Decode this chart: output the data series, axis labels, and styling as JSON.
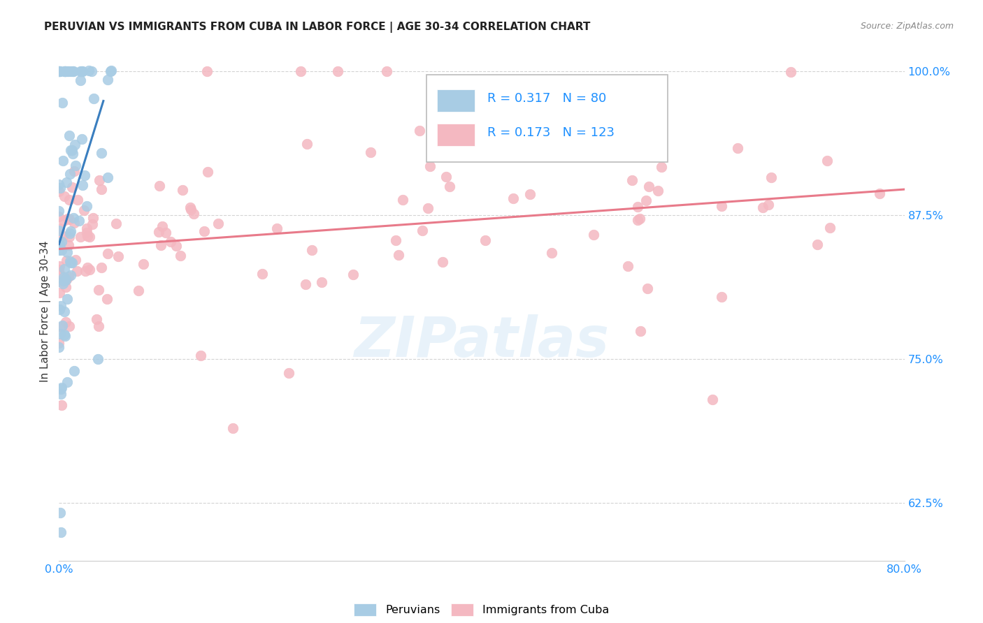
{
  "title": "PERUVIAN VS IMMIGRANTS FROM CUBA IN LABOR FORCE | AGE 30-34 CORRELATION CHART",
  "source": "Source: ZipAtlas.com",
  "ylabel": "In Labor Force | Age 30-34",
  "xmin": 0.0,
  "xmax": 0.8,
  "ymin": 0.575,
  "ymax": 1.008,
  "yticks": [
    0.625,
    0.75,
    0.875,
    1.0
  ],
  "ytick_labels": [
    "62.5%",
    "75.0%",
    "87.5%",
    "100.0%"
  ],
  "xtick_labels": [
    "0.0%",
    "80.0%"
  ],
  "xtick_positions": [
    0.0,
    0.8
  ],
  "legend_text_color": "#1e90ff",
  "peruvian_color": "#a8cce4",
  "cuba_color": "#f4b8c1",
  "trend_peruvian_color": "#3a7ebf",
  "trend_cuba_color": "#e87a8a",
  "watermark": "ZIPatlas",
  "background_color": "#ffffff",
  "grid_color": "#d0d0d0",
  "title_color": "#222222",
  "source_color": "#888888",
  "ylabel_color": "#333333"
}
